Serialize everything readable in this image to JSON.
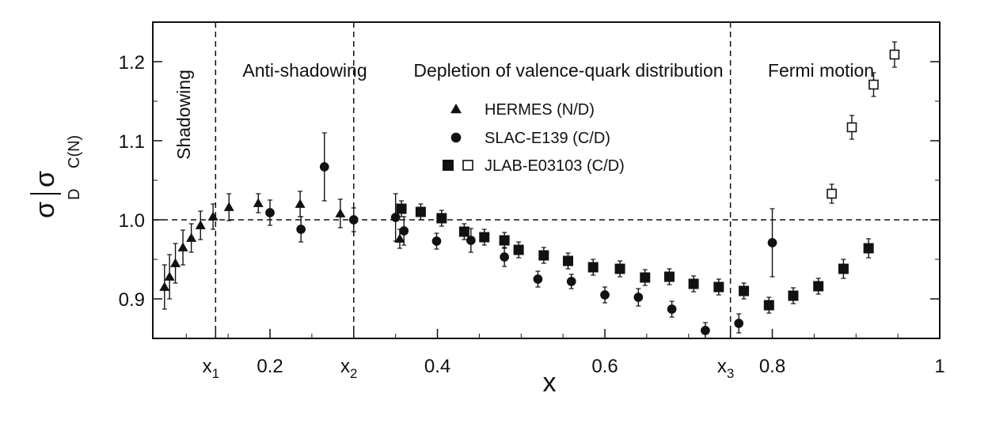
{
  "chart_data": {
    "type": "scatter",
    "xlabel": "x",
    "ylabel": {
      "numerator": "σ",
      "numerator_sup": "C(N)",
      "denominator": "σ",
      "denominator_sup": "D"
    },
    "xlim": [
      0.06,
      1.0
    ],
    "ylim": [
      0.85,
      1.25
    ],
    "x_ticks": [
      {
        "value": 0.2,
        "label": "0.2"
      },
      {
        "value": 0.4,
        "label": "0.4"
      },
      {
        "value": 0.6,
        "label": "0.6"
      },
      {
        "value": 0.8,
        "label": "0.8"
      },
      {
        "value": 1.0,
        "label": "1"
      }
    ],
    "x_markers": [
      {
        "value": 0.135,
        "label": "x",
        "sub": "1"
      },
      {
        "value": 0.3,
        "label": "x",
        "sub": "2"
      },
      {
        "value": 0.75,
        "label": "x",
        "sub": "3"
      }
    ],
    "y_ticks": [
      {
        "value": 0.9,
        "label": "0.9"
      },
      {
        "value": 1.0,
        "label": "1.0"
      },
      {
        "value": 1.1,
        "label": "1.1"
      },
      {
        "value": 1.2,
        "label": "1.2"
      }
    ],
    "reference_line": 1.0,
    "regions": [
      {
        "label": "Shadowing",
        "vertical": true
      },
      {
        "label": "Anti-shadowing"
      },
      {
        "label": "Depletion of valence-quark distribution"
      },
      {
        "label": "Fermi motion"
      }
    ],
    "legend": [
      {
        "markers": [
          "triangle"
        ],
        "label": "HERMES (N/D)"
      },
      {
        "markers": [
          "circle"
        ],
        "label": "SLAC-E139 (C/D)"
      },
      {
        "markers": [
          "square-filled",
          "square-open"
        ],
        "label": "JLAB-E03103 (C/D)"
      }
    ],
    "series": [
      {
        "name": "HERMES (N/D)",
        "marker": "triangle",
        "points": [
          {
            "x": 0.074,
            "y": 0.915,
            "err": 0.028
          },
          {
            "x": 0.08,
            "y": 0.928,
            "err": 0.028
          },
          {
            "x": 0.087,
            "y": 0.945,
            "err": 0.025
          },
          {
            "x": 0.096,
            "y": 0.965,
            "err": 0.022
          },
          {
            "x": 0.106,
            "y": 0.977,
            "err": 0.018
          },
          {
            "x": 0.117,
            "y": 0.993,
            "err": 0.018
          },
          {
            "x": 0.132,
            "y": 1.004,
            "err": 0.016
          },
          {
            "x": 0.151,
            "y": 1.016,
            "err": 0.017
          },
          {
            "x": 0.186,
            "y": 1.021,
            "err": 0.012
          },
          {
            "x": 0.236,
            "y": 1.02,
            "err": 0.016
          },
          {
            "x": 0.284,
            "y": 1.008,
            "err": 0.018
          },
          {
            "x": 0.355,
            "y": 0.976,
            "err": 0.012
          }
        ]
      },
      {
        "name": "SLAC-E139 (C/D)",
        "marker": "circle",
        "points": [
          {
            "x": 0.2,
            "y": 1.009,
            "err": 0.016
          },
          {
            "x": 0.237,
            "y": 0.988,
            "err": 0.016
          },
          {
            "x": 0.265,
            "y": 1.067,
            "err": 0.043
          },
          {
            "x": 0.3,
            "y": 1.0,
            "err": 0.015
          },
          {
            "x": 0.35,
            "y": 1.003,
            "err": 0.03
          },
          {
            "x": 0.36,
            "y": 0.986,
            "err": 0.018
          },
          {
            "x": 0.399,
            "y": 0.973,
            "err": 0.01
          },
          {
            "x": 0.44,
            "y": 0.974,
            "err": 0.015
          },
          {
            "x": 0.48,
            "y": 0.953,
            "err": 0.012
          },
          {
            "x": 0.52,
            "y": 0.925,
            "err": 0.01
          },
          {
            "x": 0.56,
            "y": 0.922,
            "err": 0.009
          },
          {
            "x": 0.6,
            "y": 0.905,
            "err": 0.01
          },
          {
            "x": 0.64,
            "y": 0.902,
            "err": 0.011
          },
          {
            "x": 0.68,
            "y": 0.887,
            "err": 0.01
          },
          {
            "x": 0.72,
            "y": 0.86,
            "err": 0.01
          },
          {
            "x": 0.76,
            "y": 0.869,
            "err": 0.012
          },
          {
            "x": 0.8,
            "y": 0.971,
            "err": 0.043
          }
        ]
      },
      {
        "name": "JLAB-E03103 (C/D)",
        "marker": "square-filled",
        "points": [
          {
            "x": 0.357,
            "y": 1.014,
            "err": 0.01
          },
          {
            "x": 0.38,
            "y": 1.01,
            "err": 0.01
          },
          {
            "x": 0.405,
            "y": 1.002,
            "err": 0.01
          },
          {
            "x": 0.432,
            "y": 0.985,
            "err": 0.01
          },
          {
            "x": 0.456,
            "y": 0.978,
            "err": 0.01
          },
          {
            "x": 0.48,
            "y": 0.974,
            "err": 0.01
          },
          {
            "x": 0.497,
            "y": 0.962,
            "err": 0.01
          },
          {
            "x": 0.527,
            "y": 0.955,
            "err": 0.01
          },
          {
            "x": 0.556,
            "y": 0.948,
            "err": 0.01
          },
          {
            "x": 0.586,
            "y": 0.94,
            "err": 0.01
          },
          {
            "x": 0.618,
            "y": 0.938,
            "err": 0.01
          },
          {
            "x": 0.648,
            "y": 0.927,
            "err": 0.01
          },
          {
            "x": 0.677,
            "y": 0.928,
            "err": 0.01
          },
          {
            "x": 0.706,
            "y": 0.919,
            "err": 0.01
          },
          {
            "x": 0.736,
            "y": 0.915,
            "err": 0.01
          },
          {
            "x": 0.766,
            "y": 0.91,
            "err": 0.01
          },
          {
            "x": 0.796,
            "y": 0.892,
            "err": 0.01
          },
          {
            "x": 0.825,
            "y": 0.904,
            "err": 0.01
          },
          {
            "x": 0.855,
            "y": 0.916,
            "err": 0.01
          },
          {
            "x": 0.885,
            "y": 0.938,
            "err": 0.012
          },
          {
            "x": 0.915,
            "y": 0.964,
            "err": 0.012
          }
        ]
      },
      {
        "name": "JLAB-E03103 (C/D)",
        "marker": "square-open",
        "points": [
          {
            "x": 0.871,
            "y": 1.033,
            "err": 0.012
          },
          {
            "x": 0.895,
            "y": 1.117,
            "err": 0.015
          },
          {
            "x": 0.921,
            "y": 1.171,
            "err": 0.015
          },
          {
            "x": 0.946,
            "y": 1.209,
            "err": 0.016
          }
        ]
      }
    ]
  }
}
